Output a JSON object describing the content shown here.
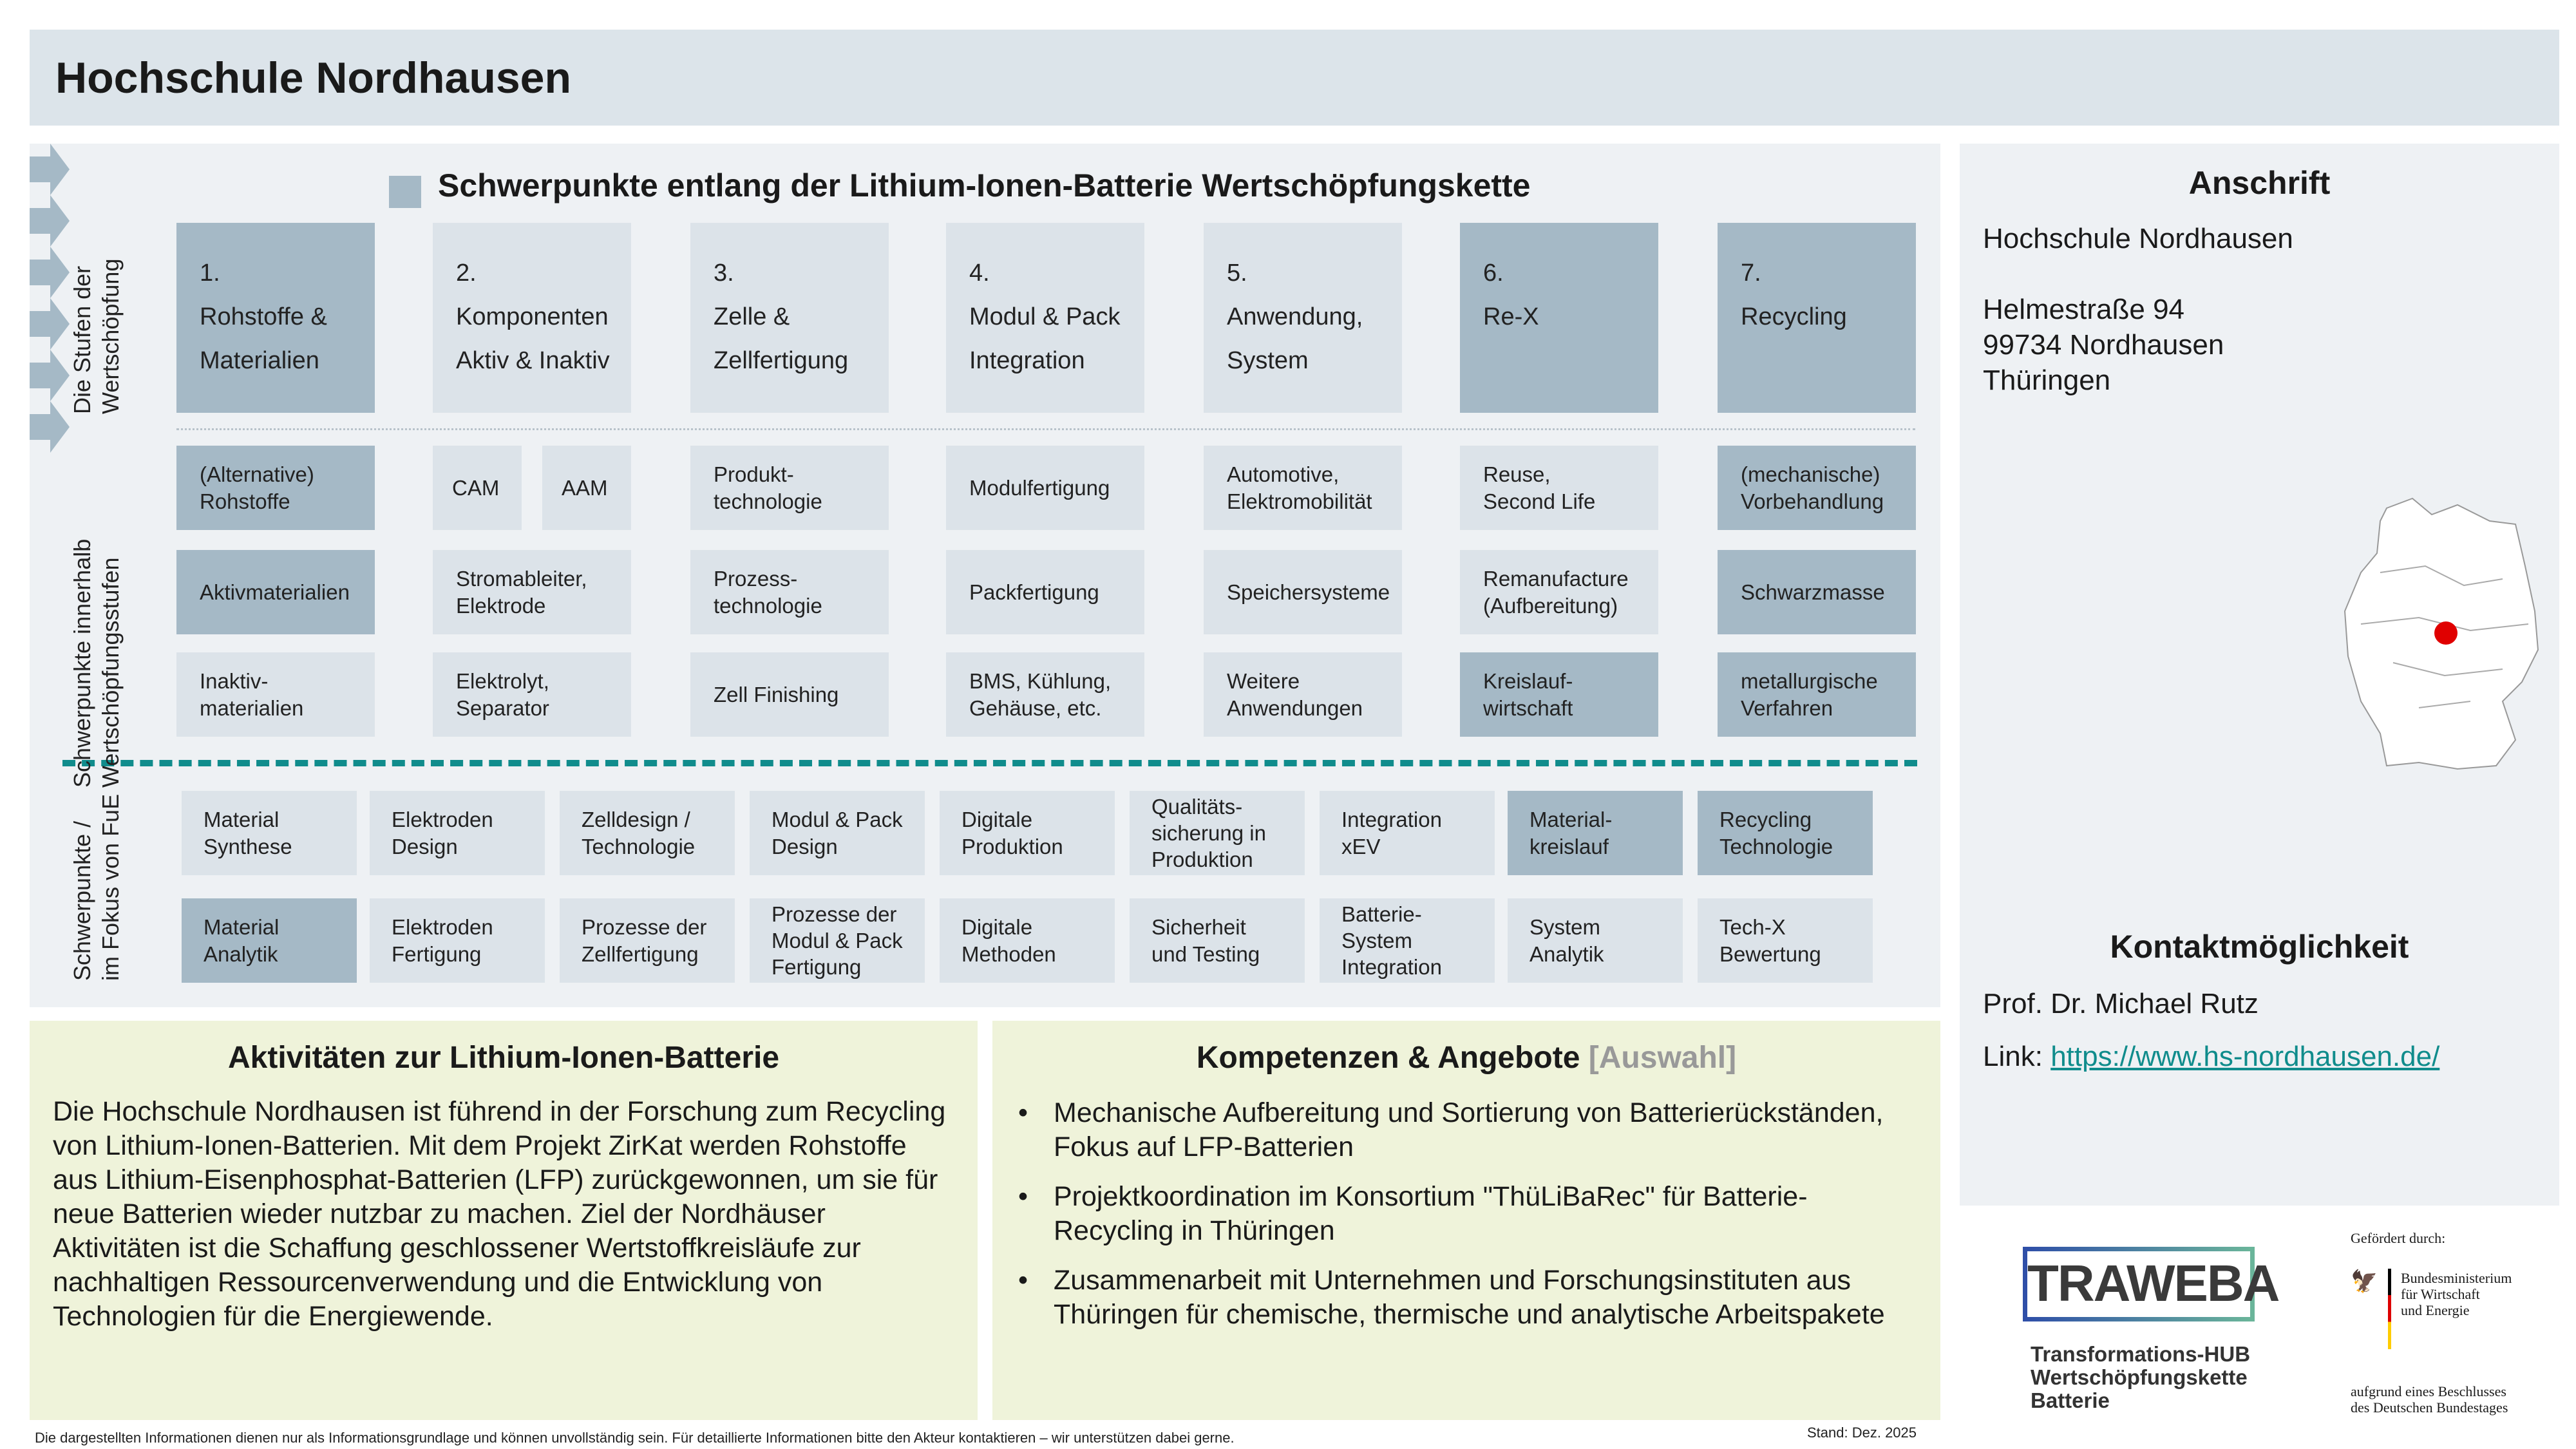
{
  "header": {
    "title": "Hochschule Nordhausen"
  },
  "main": {
    "title": "Schwerpunkte entlang der Lithium-Ionen-Batterie Wertschöpfungskette",
    "side_labels": [
      "Die Stufen der\nWertschöpfung",
      "Schwerpunkte innerhalb\nWertschöpfungsstufen",
      "Schwerpunkte /\nim Fokus  von FuE"
    ],
    "stages": [
      {
        "num": "1.",
        "l1": "Rohstoffe &",
        "l2": "Materialien",
        "dark": true
      },
      {
        "num": "2.",
        "l1": "Komponenten",
        "l2": "Aktiv & Inaktiv",
        "dark": false
      },
      {
        "num": "3.",
        "l1": "Zelle &",
        "l2": "Zellfertigung",
        "dark": false
      },
      {
        "num": "4.",
        "l1": "Modul & Pack",
        "l2": "Integration",
        "dark": false
      },
      {
        "num": "5.",
        "l1": "Anwendung,",
        "l2": "System",
        "dark": false
      },
      {
        "num": "6.",
        "l1": "Re-X",
        "l2": "",
        "dark": true
      },
      {
        "num": "7.",
        "l1": "Recycling",
        "l2": "",
        "dark": true
      }
    ],
    "focus_rows": [
      [
        {
          "text": "(Alternative)\nRohstoffe",
          "dark": true
        },
        {
          "split": [
            {
              "text": "CAM"
            },
            {
              "text": "AAM"
            }
          ]
        },
        {
          "text": "Produkt-\ntechnologie"
        },
        {
          "text": "Modulfertigung"
        },
        {
          "text": "Automotive,\nElektromobilität"
        },
        {
          "text": "Reuse,\nSecond Life"
        },
        {
          "text": "(mechanische)\nVorbehandlung",
          "dark": true
        }
      ],
      [
        {
          "text": "Aktivmaterialien",
          "dark": true
        },
        {
          "text": "Stromableiter,\nElektrode"
        },
        {
          "text": "Prozess-\ntechnologie"
        },
        {
          "text": "Packfertigung"
        },
        {
          "text": "Speichersysteme"
        },
        {
          "text": "Remanufacture\n(Aufbereitung)"
        },
        {
          "text": "Schwarzmasse",
          "dark": true
        }
      ],
      [
        {
          "text": "Inaktiv-\nmaterialien"
        },
        {
          "text": "Elektrolyt,\nSeparator"
        },
        {
          "text": "Zell Finishing"
        },
        {
          "text": "BMS, Kühlung,\nGehäuse, etc."
        },
        {
          "text": "Weitere\nAnwendungen"
        },
        {
          "text": "Kreislauf-\nwirtschaft",
          "dark": true
        },
        {
          "text": "metallurgische\nVerfahren",
          "dark": true
        }
      ]
    ],
    "fue_rows": [
      [
        {
          "text": "Material\nSynthese"
        },
        {
          "text": "Elektroden\nDesign"
        },
        {
          "text": "Zelldesign /\nTechnologie"
        },
        {
          "text": "Modul & Pack\nDesign"
        },
        {
          "text": "Digitale\nProduktion"
        },
        {
          "text": "Qualitäts-\nsicherung in\nProduktion"
        },
        {
          "text": "Integration\nxEV"
        },
        {
          "text": "Material-\nkreislauf",
          "dark": true
        },
        {
          "text": "Recycling\nTechnologie",
          "dark": true
        }
      ],
      [
        {
          "text": "Material\nAnalytik",
          "dark": true
        },
        {
          "text": "Elektroden\nFertigung"
        },
        {
          "text": "Prozesse der\nZellfertigung"
        },
        {
          "text": "Prozesse der\nModul & Pack\nFertigung"
        },
        {
          "text": "Digitale\nMethoden"
        },
        {
          "text": "Sicherheit\nund Testing"
        },
        {
          "text": "Batterie-\nSystem\nIntegration"
        },
        {
          "text": "System\nAnalytik"
        },
        {
          "text": "Tech-X\nBewertung"
        }
      ]
    ]
  },
  "activities": {
    "title": "Aktivitäten zur Lithium-Ionen-Batterie",
    "text": "Die Hochschule Nordhausen ist führend in der Forschung zum Recycling von Lithium-Ionen-Batterien. Mit dem Projekt ZirKat werden Rohstoffe aus Lithium-Eisenphosphat-Batterien (LFP) zurückgewonnen, um sie für neue Batterien wieder nutzbar zu machen. Ziel der Nordhäuser Aktivitäten ist die Schaffung geschlossener Wertstoffkreisläufe zur nachhaltigen Ressourcenverwendung und die Entwicklung von Technologien für die Energiewende."
  },
  "competences": {
    "title": "Kompetenzen & Angebote",
    "title_suffix": "[Auswahl]",
    "items": [
      "Mechanische Aufbereitung und Sortierung von Batterierückständen, Fokus auf LFP-Batterien",
      "Projektkoordination im Konsortium \"ThüLiBaRec\" für Batterie-Recycling in Thüringen",
      "Zusammenarbeit mit Unternehmen und Forschungsinstituten aus Thüringen für chemische, thermische und analytische Arbeitspakete"
    ]
  },
  "address": {
    "title": "Anschrift",
    "name": "Hochschule Nordhausen",
    "street": "Helmestraße 94",
    "city": "99734 Nordhausen",
    "state": "Thüringen"
  },
  "contact": {
    "title": "Kontaktmöglichkeit",
    "person": "Prof. Dr. Michael Rutz",
    "link_label": "Link:",
    "link": "https://www.hs-nordhausen.de/"
  },
  "logos": {
    "traweba": "TRAWEBA",
    "traweba_sub": [
      "Transformations-HUB",
      "Wertschöpfungskette",
      "Batterie"
    ],
    "funded_by": "Gefördert durch:",
    "ministry": [
      "Bundesministerium",
      "für Wirtschaft",
      "und Energie"
    ],
    "decision": [
      "aufgrund eines Beschlusses",
      "des Deutschen Bundestages"
    ]
  },
  "footer": {
    "disclaimer": "Die dargestellten Informationen dienen nur als Informationsgrundlage und können unvollständig sein. Für detaillierte Informationen bitte den Akteur kontaktieren – wir unterstützen dabei gerne.",
    "date": "Stand: Dez. 2025"
  },
  "colors": {
    "dark_box": "#a5b9c6",
    "light_box": "#dce3e9",
    "accent_teal": "#108c8c",
    "panel_green": "#eff3da",
    "map_marker": "#e00000"
  }
}
